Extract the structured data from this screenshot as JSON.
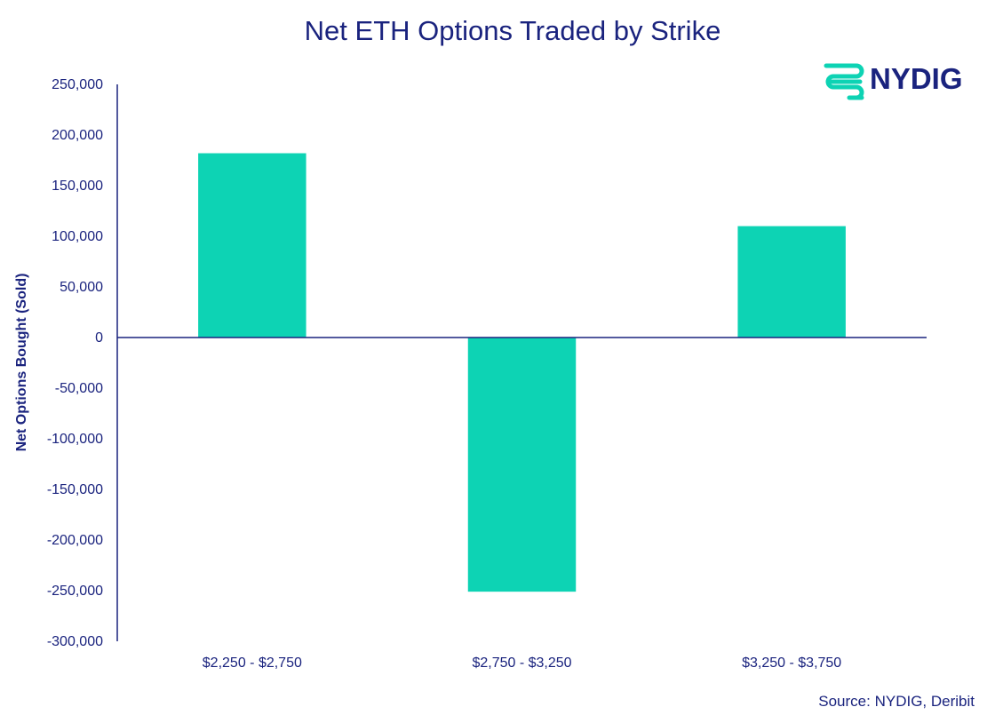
{
  "logo": {
    "text": "NYDIG",
    "icon": "nydig-logo-icon",
    "icon_color": "#0dd3b4"
  },
  "source": "Source: NYDIG, Deribit",
  "colors": {
    "bar": "#0dd3b4",
    "text": "#1a237e",
    "axis": "#1a237e"
  },
  "chart_data": {
    "type": "bar",
    "title": "Net ETH Options Traded by Strike",
    "xlabel": "",
    "ylabel": "Net Options Bought (Sold)",
    "categories": [
      "$2,250 - $2,750",
      "$2,750 - $3,250",
      "$3,250 - $3,750"
    ],
    "values": [
      182000,
      -251000,
      110000
    ],
    "ylim": [
      -300000,
      250000
    ],
    "yticks": [
      250000,
      200000,
      150000,
      100000,
      50000,
      0,
      -50000,
      -100000,
      -150000,
      -200000,
      -250000,
      -300000
    ],
    "ytick_labels": [
      "250,000",
      "200,000",
      "150,000",
      "100,000",
      "50,000",
      "0",
      "-50,000",
      "-100,000",
      "-150,000",
      "-200,000",
      "-250,000",
      "-300,000"
    ],
    "grid": false,
    "legend": "none"
  }
}
